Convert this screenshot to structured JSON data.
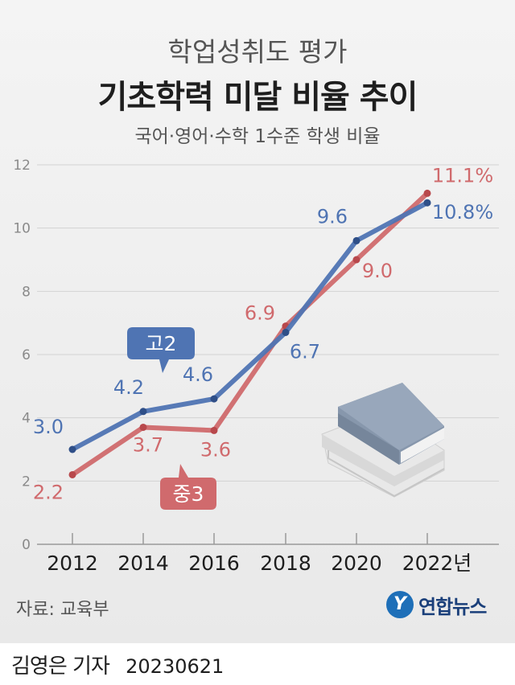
{
  "header": {
    "supertitle": "학업성취도 평가",
    "title": "기초학력 미달 비율 추이",
    "subtitle": "국어·영어·수학 1수준 학생 비율"
  },
  "footer": {
    "source": "자료: 교육부",
    "logo_mark": "Y",
    "logo_text": "연합뉴스",
    "reporter": "김영은 기자",
    "date": "20230621"
  },
  "colors": {
    "high": "#4f74b3",
    "middle": "#d06a6d",
    "grid": "#d2d2d2"
  },
  "chart_data": {
    "type": "line",
    "categories": [
      "2012",
      "2014",
      "2016",
      "2018",
      "2020",
      "2022년"
    ],
    "x": [
      2012,
      2014,
      2016,
      2018,
      2020,
      2022
    ],
    "ylim": [
      0,
      12
    ],
    "yticks": [
      "0",
      "2",
      "4",
      "6",
      "8",
      "10",
      "12"
    ],
    "grid": true,
    "series": [
      {
        "key": "high",
        "name": "고2",
        "values": [
          3.0,
          4.2,
          4.6,
          6.7,
          9.6,
          10.8
        ],
        "labels": [
          "3.0",
          "4.2",
          "4.6",
          "6.7",
          "9.6",
          "10.8%"
        ]
      },
      {
        "key": "middle",
        "name": "중3",
        "values": [
          2.2,
          3.7,
          3.6,
          6.9,
          9.0,
          11.1
        ],
        "labels": [
          "2.2",
          "3.7",
          "3.6",
          "6.9",
          "9.0",
          "11.1%"
        ]
      }
    ]
  }
}
